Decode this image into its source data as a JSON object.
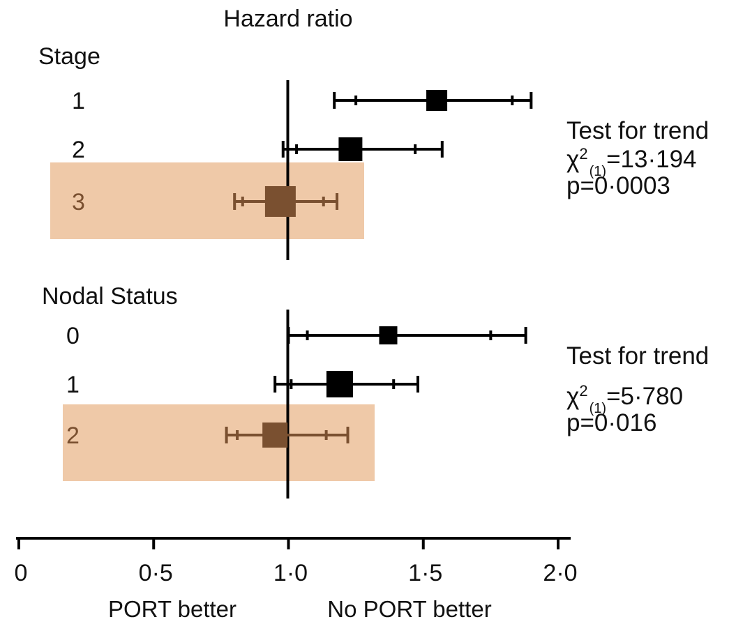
{
  "chart_data": {
    "type": "forest",
    "title": "Hazard ratio",
    "xlabel_left": "PORT better",
    "xlabel_right": "No PORT better",
    "xlim": [
      0,
      2
    ],
    "xticks": [
      0,
      0.5,
      1.0,
      1.5,
      2.0
    ],
    "xtick_labels": [
      "0",
      "0·5",
      "1·0",
      "1·5",
      "2·0"
    ],
    "reference_line": 1.0,
    "colors": {
      "main": "#000000",
      "highlight_fill": "#efc9a8",
      "highlight_marker": "#7a5030"
    },
    "groups": [
      {
        "name": "Stage",
        "rows": [
          {
            "label": "1",
            "hr": 1.55,
            "ci95": [
              1.17,
              1.9
            ],
            "ci_inner": [
              1.25,
              1.83
            ],
            "highlighted": false
          },
          {
            "label": "2",
            "hr": 1.23,
            "ci95": [
              0.98,
              1.57
            ],
            "ci_inner": [
              1.03,
              1.47
            ],
            "highlighted": false
          },
          {
            "label": "3",
            "hr": 0.97,
            "ci95": [
              0.8,
              1.18
            ],
            "ci_inner": [
              0.83,
              1.13
            ],
            "highlighted": true
          }
        ],
        "trend_test": {
          "heading": "Test for trend",
          "chi_symbol": "χ",
          "sup": "2",
          "sub": "(1)",
          "value": "=13·194",
          "p": "p=0·0003"
        }
      },
      {
        "name": "Nodal Status",
        "rows": [
          {
            "label": "0",
            "hr": 1.37,
            "ci95": [
              1.0,
              1.88
            ],
            "ci_inner": [
              1.07,
              1.75
            ],
            "highlighted": false
          },
          {
            "label": "1",
            "hr": 1.19,
            "ci95": [
              0.95,
              1.48
            ],
            "ci_inner": [
              1.01,
              1.39
            ],
            "highlighted": false
          },
          {
            "label": "2",
            "hr": 0.95,
            "ci95": [
              0.77,
              1.22
            ],
            "ci_inner": [
              0.81,
              1.14
            ],
            "highlighted": true
          }
        ],
        "trend_test": {
          "heading": "Test for trend",
          "chi_symbol": "χ",
          "sup": "2",
          "sub": "(1)",
          "value": "=5·780",
          "p": "p=0·016"
        }
      }
    ]
  }
}
